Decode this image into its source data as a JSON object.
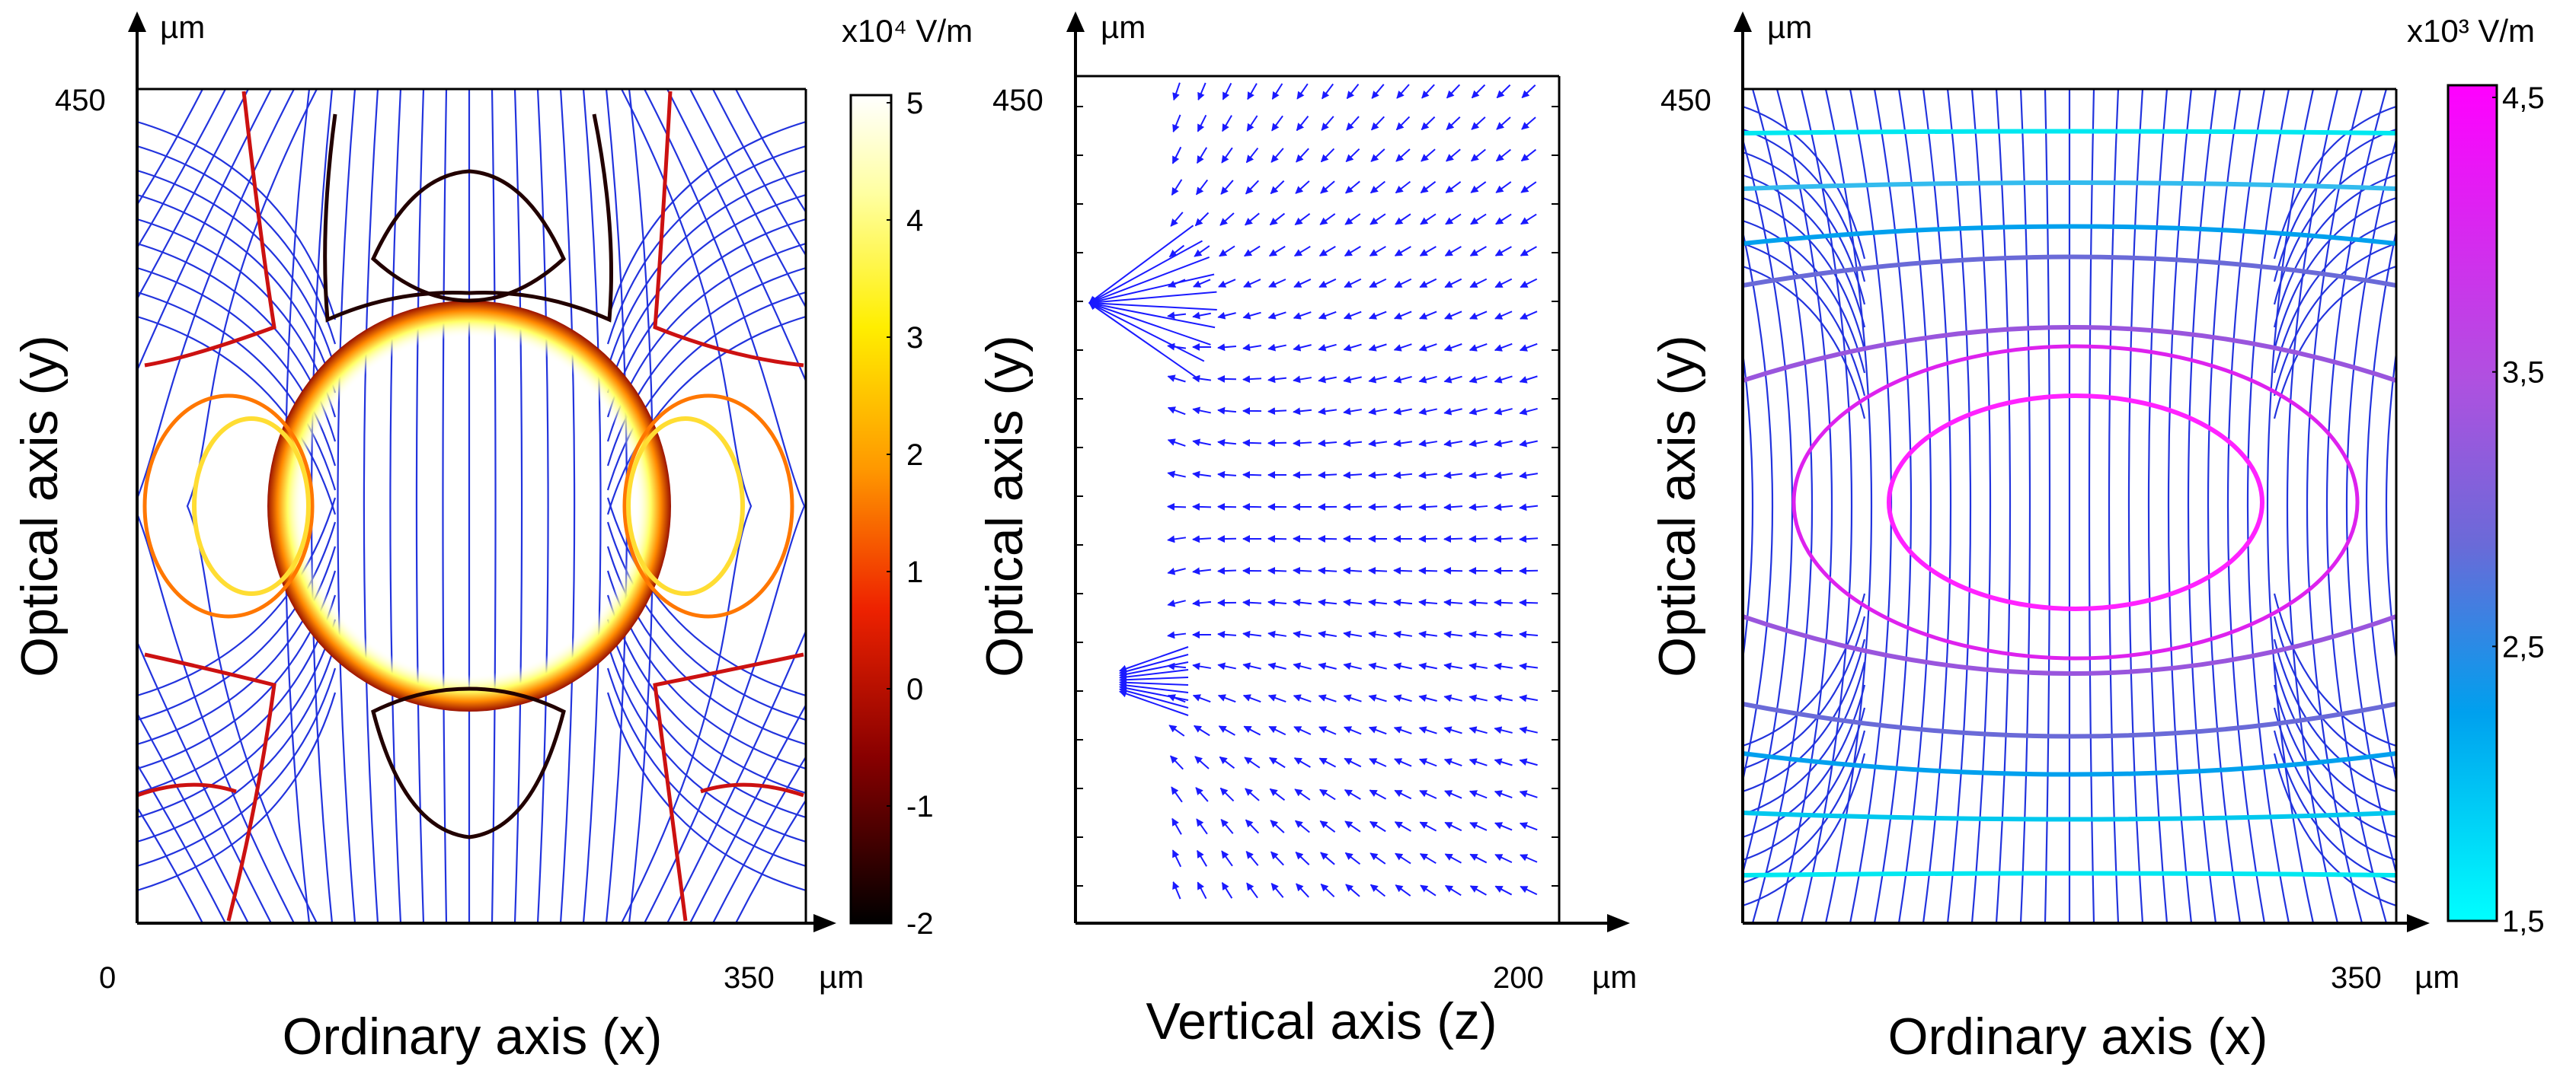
{
  "chart_data": [
    {
      "type": "contour",
      "title": "",
      "xlabel": "Ordinary axis (x)",
      "ylabel": "Optical axis (y)",
      "x_unit": "µm",
      "y_unit": "µm",
      "x_ticks": [
        "0",
        "350"
      ],
      "y_ticks": [
        "450"
      ],
      "xlim": [
        0,
        350
      ],
      "ylim": [
        0,
        450
      ],
      "overlay": "electric field streamlines (blue)",
      "colorbar": {
        "unit": "x10⁴ V/m",
        "range": [
          -2,
          5
        ],
        "ticks": [
          "5",
          "4",
          "3",
          "2",
          "1",
          "0",
          "-1",
          "-2"
        ],
        "colormap": "black-red-orange-yellow-white"
      }
    },
    {
      "type": "quiver",
      "title": "",
      "xlabel": "Vertical axis (z)",
      "ylabel": "Optical axis (y)",
      "x_unit": "µm",
      "y_unit": "µm",
      "x_ticks": [
        "200"
      ],
      "y_ticks": [
        "450"
      ],
      "xlim": [
        0,
        200
      ],
      "ylim": [
        0,
        450
      ],
      "arrow_color": "#1a1aff"
    },
    {
      "type": "contour",
      "title": "",
      "xlabel": "Ordinary axis (x)",
      "ylabel": "Optical axis (y)",
      "x_unit": "µm",
      "y_unit": "µm",
      "x_ticks": [
        "350"
      ],
      "y_ticks": [
        "450"
      ],
      "xlim": [
        0,
        350
      ],
      "ylim": [
        0,
        450
      ],
      "overlay": "electric field streamlines (blue)",
      "colorbar": {
        "unit": "x10³ V/m",
        "range": [
          1.5,
          4.5
        ],
        "ticks": [
          "4,5",
          "3,5",
          "2,5",
          "1,5"
        ],
        "colormap": "cyan-blue-purple-magenta"
      }
    }
  ],
  "colors": {
    "streamline": "#2233dd",
    "axis": "#000000",
    "contour_dark": "#220000",
    "contour_red": "#cc1111",
    "contour_orange": "#ff7700"
  }
}
